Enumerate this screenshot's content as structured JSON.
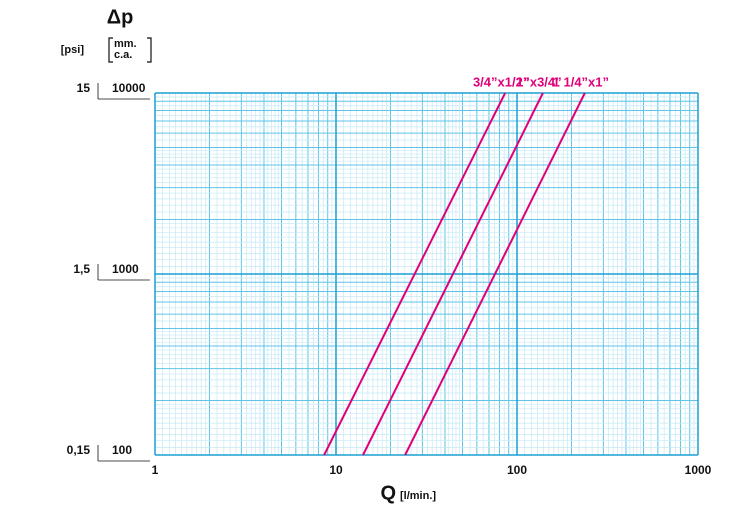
{
  "chart_data": {
    "type": "line",
    "title": "Δp",
    "y2_unit": "[psi]",
    "y_unit_lines": [
      "mm.",
      "c.a."
    ],
    "x_label": "Q",
    "x_unit": "[l/min.]",
    "log_x": true,
    "log_y": true,
    "grid": true,
    "xlim": [
      1,
      1000
    ],
    "xticks": [
      1,
      10,
      100,
      1000
    ],
    "ylim": [
      100,
      10000
    ],
    "yticks": [
      100,
      1000,
      10000
    ],
    "y2lim": [
      0.15,
      15
    ],
    "y2ticks": [
      {
        "value": 0.15,
        "label": "0,15"
      },
      {
        "value": 1.5,
        "label": "1,5"
      },
      15
    ],
    "series": [
      {
        "name": "3/4”x1/2”",
        "color": "#e0007a",
        "x": [
          8.6,
          86
        ],
        "values": [
          100,
          10000
        ]
      },
      {
        "name": "1”x3/4”",
        "color": "#e0007a",
        "x": [
          14.1,
          139
        ],
        "values": [
          100,
          10000
        ]
      },
      {
        "name": "1 1/4”x1”",
        "color": "#e0007a",
        "x": [
          24.1,
          237
        ],
        "values": [
          100,
          10000
        ]
      }
    ]
  }
}
